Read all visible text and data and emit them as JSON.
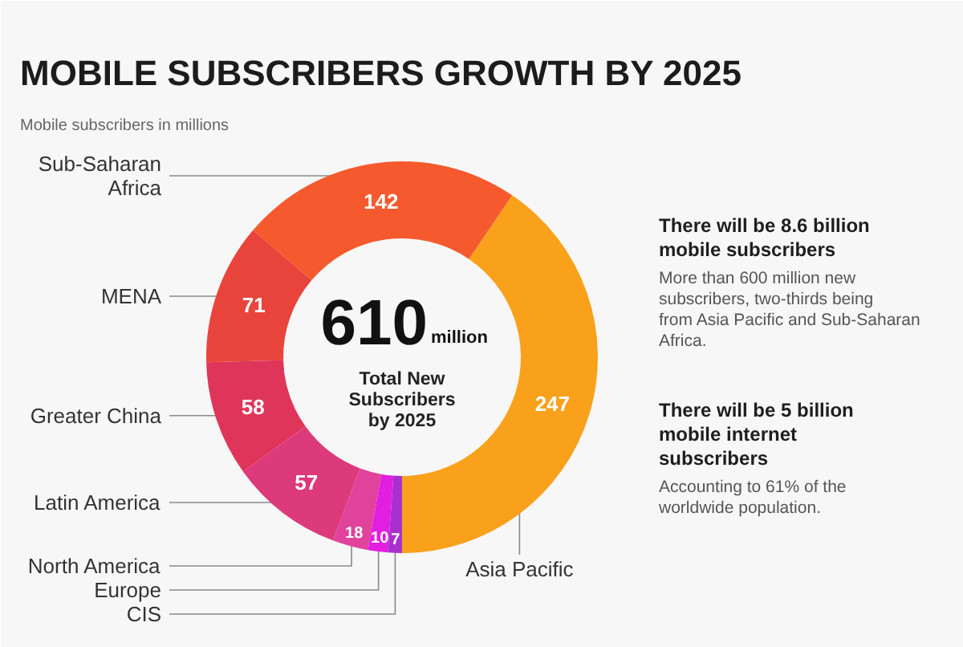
{
  "chart_data": {
    "type": "donut",
    "title": "MOBILE SUBSCRIBERS GROWTH BY 2025",
    "subtitle": "Mobile subscribers in millions",
    "categories": [
      "Asia Pacific",
      "Sub-Saharan Africa",
      "MENA",
      "Greater China",
      "Latin America",
      "North America",
      "Europe",
      "CIS"
    ],
    "values": [
      247,
      142,
      71,
      58,
      57,
      18,
      10,
      7
    ],
    "colors": [
      "#f9a11b",
      "#f45a2e",
      "#e9443b",
      "#e0355a",
      "#dc3a7a",
      "#e0429c",
      "#e21ee0",
      "#a92fcf"
    ],
    "data_labels": true,
    "annotations": [
      "610",
      "million",
      "Total New Subscribers by 2025",
      "There will be 8.6 billion mobile subscribers",
      "More than 600 million new subscribers, two-thirds being from Asia Pacific and Sub-Saharan Africa.",
      "There will be 5 billion mobile internet subscribers",
      "Accounting to 61% of the worldwide population."
    ]
  }
}
